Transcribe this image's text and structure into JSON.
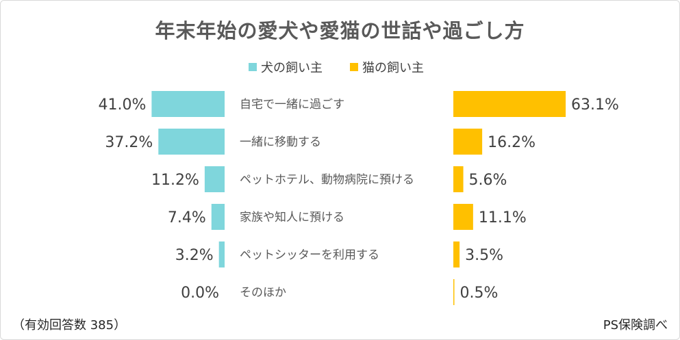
{
  "chart_data": {
    "type": "bar",
    "title": "年末年始の愛犬や愛猫の世話や過ごし方",
    "categories": [
      "自宅で一緒に過ごす",
      "一緒に移動する",
      "ペットホテル、動物病院に預ける",
      "家族や知人に預ける",
      "ペットシッターを利用する",
      "そのほか"
    ],
    "series": [
      {
        "name": "犬の飼い主",
        "color": "#7fd6dc",
        "values": [
          41.0,
          37.2,
          11.2,
          7.4,
          3.2,
          0.0
        ],
        "labels": [
          "41.0%",
          "37.2%",
          "11.2%",
          "7.4%",
          "3.2%",
          "0.0%"
        ]
      },
      {
        "name": "猫の飼い主",
        "color": "#ffc000",
        "values": [
          63.1,
          16.2,
          5.6,
          11.1,
          3.5,
          0.5
        ],
        "labels": [
          "63.1%",
          "16.2%",
          "5.6%",
          "11.1%",
          "3.5%",
          "0.5%"
        ]
      }
    ],
    "unit": "%",
    "xlim": [
      0,
      70
    ],
    "legend": "top-center"
  },
  "footer": {
    "note": "（有効回答数 385）",
    "source": "PS保険調べ"
  }
}
